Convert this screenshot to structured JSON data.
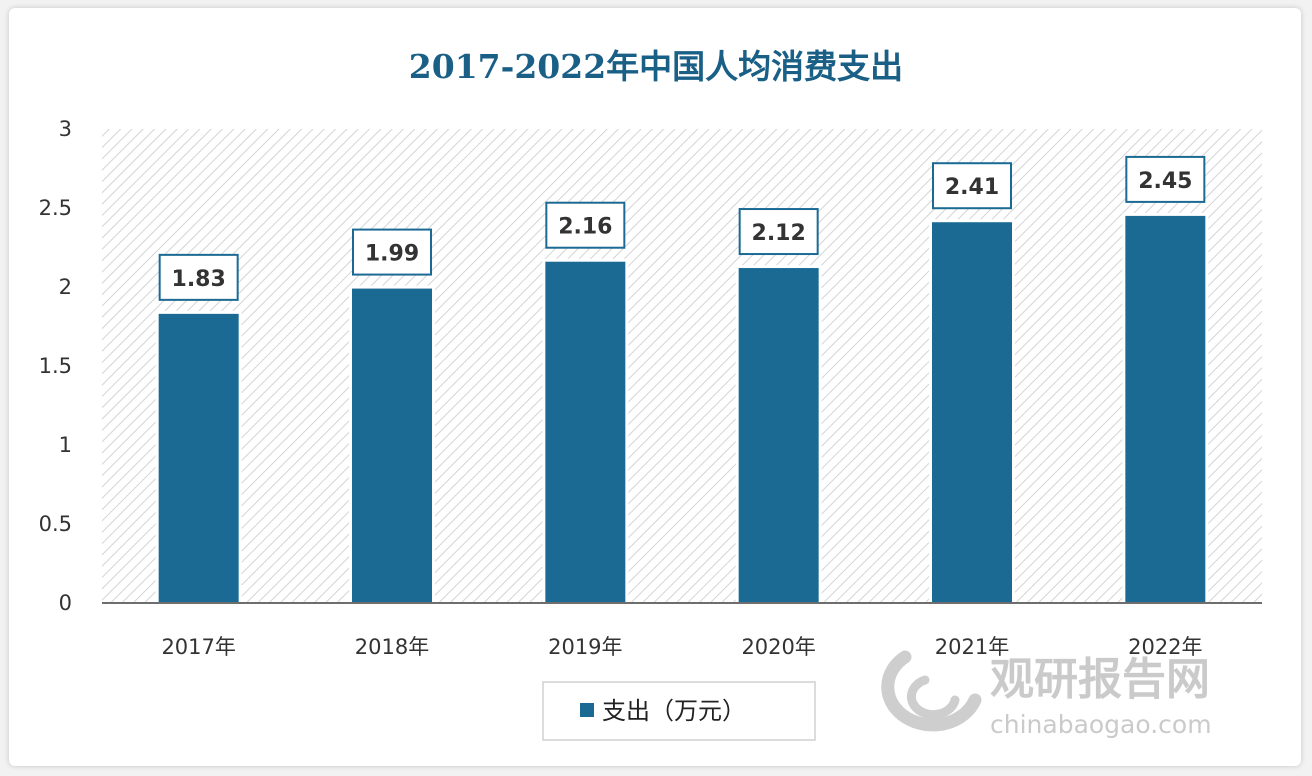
{
  "chart_data": {
    "type": "bar",
    "title": "2017-2022年中国人均消费支出",
    "categories": [
      "2017年",
      "2018年",
      "2019年",
      "2020年",
      "2021年",
      "2022年"
    ],
    "series": [
      {
        "name": "支出（万元）",
        "values": [
          1.83,
          1.99,
          2.16,
          2.12,
          2.41,
          2.45
        ]
      }
    ],
    "data_labels": [
      "1.83",
      "1.99",
      "2.16",
      "2.12",
      "2.41",
      "2.45"
    ],
    "ylim": [
      0,
      3
    ],
    "yticks": [
      "0",
      "0.5",
      "1",
      "1.5",
      "2",
      "2.5",
      "3"
    ],
    "grid": false,
    "legend": "bottom",
    "colors": {
      "bar": "#1a6a94",
      "title": "#1a5f86",
      "label_border": "#1a6a94"
    }
  },
  "watermark": {
    "brand": "观研报告网",
    "url": "chinabaogao.com"
  }
}
